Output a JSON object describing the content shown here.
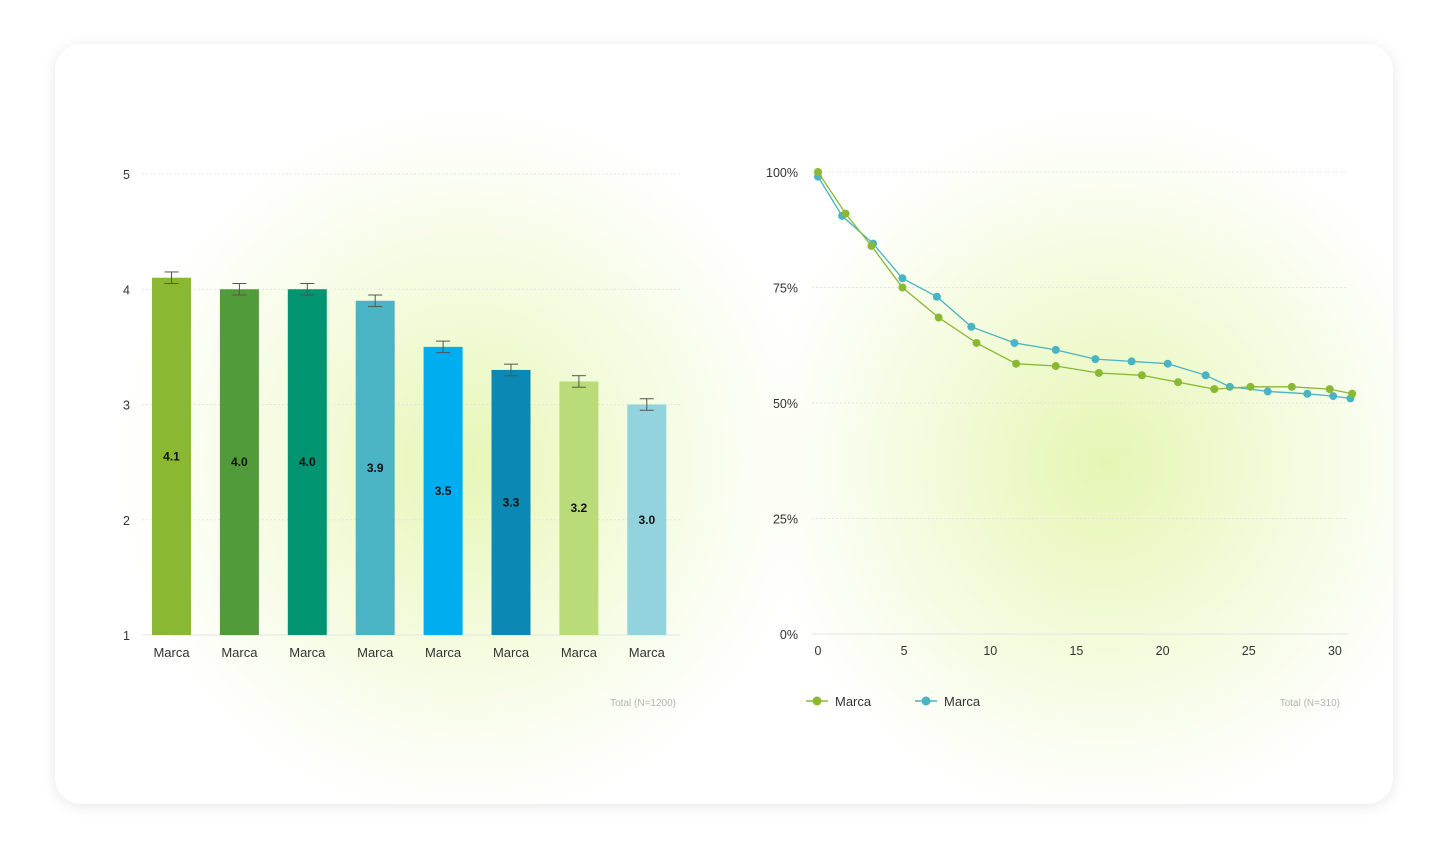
{
  "colors": {
    "series1": "#8ab833",
    "series2": "#4ab3c4",
    "grid": "#e4e4e4"
  },
  "chart_data": [
    {
      "type": "bar",
      "categories": [
        "Marca",
        "Marca",
        "Marca",
        "Marca",
        "Marca",
        "Marca",
        "Marca",
        "Marca"
      ],
      "values": [
        4.1,
        4.0,
        4.0,
        3.9,
        3.5,
        3.3,
        3.2,
        3.0
      ],
      "value_labels": [
        "4.1",
        "4.0",
        "4.0",
        "3.9",
        "3.5",
        "3.3",
        "3.2",
        "3.0"
      ],
      "error_margin": 0.05,
      "bar_colors": [
        "#8ab833",
        "#529b3a",
        "#009470",
        "#4ab3c4",
        "#00aeef",
        "#0b88b3",
        "#badb7a",
        "#93d3de"
      ],
      "ylim": [
        1,
        5
      ],
      "yticks": [
        "1",
        "2",
        "3",
        "4",
        "5"
      ],
      "grid": true,
      "note": "Total (N=1200)"
    },
    {
      "type": "line",
      "xticks": [
        "0",
        "5",
        "10",
        "15",
        "20",
        "25",
        "30"
      ],
      "yticks": [
        "0%",
        "25%",
        "50%",
        "75%",
        "100%"
      ],
      "xlim": [
        0,
        31
      ],
      "ylim": [
        0,
        100
      ],
      "grid": true,
      "legend_position": "bottom-left",
      "series": [
        {
          "name": "Marca",
          "color": "#8ab833",
          "points": [
            [
              0,
              100
            ],
            [
              1.6,
              91
            ],
            [
              3.1,
              84
            ],
            [
              4.9,
              75
            ],
            [
              7,
              68.5
            ],
            [
              9.2,
              63
            ],
            [
              11.5,
              58.5
            ],
            [
              13.8,
              58
            ],
            [
              16.3,
              56.5
            ],
            [
              18.8,
              56
            ],
            [
              20.9,
              54.5
            ],
            [
              23,
              53
            ],
            [
              25.1,
              53.5
            ],
            [
              27.5,
              53.5
            ],
            [
              29.7,
              53
            ],
            [
              31,
              52
            ]
          ]
        },
        {
          "name": "Marca",
          "color": "#4ab3c4",
          "points": [
            [
              0,
              99
            ],
            [
              1.4,
              90.5
            ],
            [
              3.2,
              84.5
            ],
            [
              4.9,
              77
            ],
            [
              6.9,
              73
            ],
            [
              8.9,
              66.5
            ],
            [
              11.4,
              63
            ],
            [
              13.8,
              61.5
            ],
            [
              16.1,
              59.5
            ],
            [
              18.2,
              59
            ],
            [
              20.3,
              58.5
            ],
            [
              22.5,
              56
            ],
            [
              23.9,
              53.5
            ],
            [
              26.1,
              52.5
            ],
            [
              28.4,
              52
            ],
            [
              29.9,
              51.5
            ],
            [
              30.9,
              51
            ]
          ]
        }
      ],
      "note": "Total (N=310)"
    }
  ]
}
